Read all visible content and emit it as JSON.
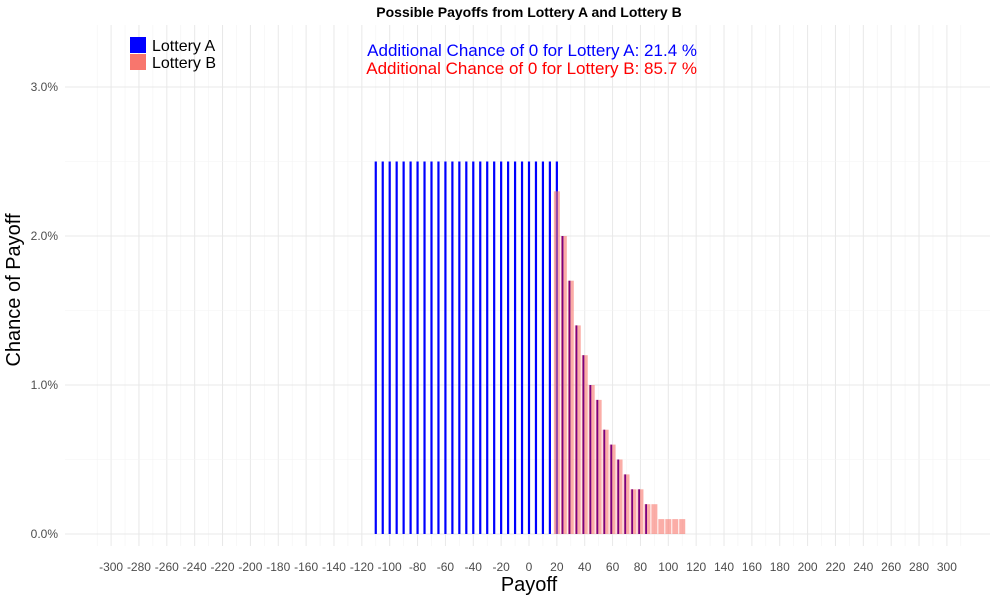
{
  "chart_data": {
    "type": "bar",
    "title": "Possible Payoffs from Lottery A and Lottery B",
    "xlabel": "Payoff",
    "ylabel": "Chance of Payoff",
    "xlim": [
      -315,
      315
    ],
    "ylim": [
      0,
      0.033
    ],
    "x_ticks": [
      -300,
      -280,
      -260,
      -240,
      -220,
      -200,
      -180,
      -160,
      -140,
      -120,
      -100,
      -80,
      -60,
      -40,
      -20,
      0,
      20,
      40,
      60,
      80,
      100,
      120,
      140,
      160,
      180,
      200,
      220,
      240,
      260,
      280,
      300
    ],
    "x_tick_labels": [
      "-300",
      "-280",
      "-260",
      "-240",
      "-220",
      "-200",
      "-180",
      "-160",
      "-140",
      "-120",
      "-100",
      "-80",
      "-60",
      "-40",
      "-20",
      "0",
      "20",
      "40",
      "60",
      "80",
      "100",
      "120",
      "140",
      "160",
      "180",
      "200",
      "220",
      "240",
      "260",
      "280",
      "300"
    ],
    "y_ticks": [
      0,
      0.01,
      0.02,
      0.03
    ],
    "y_tick_labels": [
      "0.0%",
      "1.0%",
      "2.0%",
      "3.0%"
    ],
    "grid": true,
    "legend_position": "top-left",
    "series": [
      {
        "name": "Lottery A",
        "color": "#0000FF",
        "x": [
          -110,
          -105,
          -100,
          -95,
          -90,
          -85,
          -80,
          -75,
          -70,
          -65,
          -60,
          -55,
          -50,
          -45,
          -40,
          -35,
          -30,
          -25,
          -20,
          -15,
          -10,
          -5,
          0,
          5,
          10,
          15,
          20
        ],
        "values": [
          0.025,
          0.025,
          0.025,
          0.025,
          0.025,
          0.025,
          0.025,
          0.025,
          0.025,
          0.025,
          0.025,
          0.025,
          0.025,
          0.025,
          0.025,
          0.025,
          0.025,
          0.025,
          0.025,
          0.025,
          0.025,
          0.025,
          0.025,
          0.025,
          0.025,
          0.025,
          0.025
        ]
      },
      {
        "name": "Lottery B",
        "color": "#F8766D",
        "x": [
          20,
          25,
          30,
          35,
          40,
          45,
          50,
          55,
          60,
          65,
          70,
          75,
          80,
          85,
          90,
          95,
          100,
          105,
          110
        ],
        "values": [
          0.023,
          0.02,
          0.017,
          0.014,
          0.012,
          0.01,
          0.009,
          0.007,
          0.006,
          0.005,
          0.004,
          0.003,
          0.003,
          0.002,
          0.002,
          0.001,
          0.001,
          0.001,
          0.001
        ]
      }
    ],
    "annotations": [
      {
        "text": "Additional Chance of 0 for Lottery A:  21.4 %",
        "color": "#0000FF"
      },
      {
        "text": "Additional Chance of 0 for Lottery B:  85.7 %",
        "color": "#FF0000"
      }
    ]
  }
}
